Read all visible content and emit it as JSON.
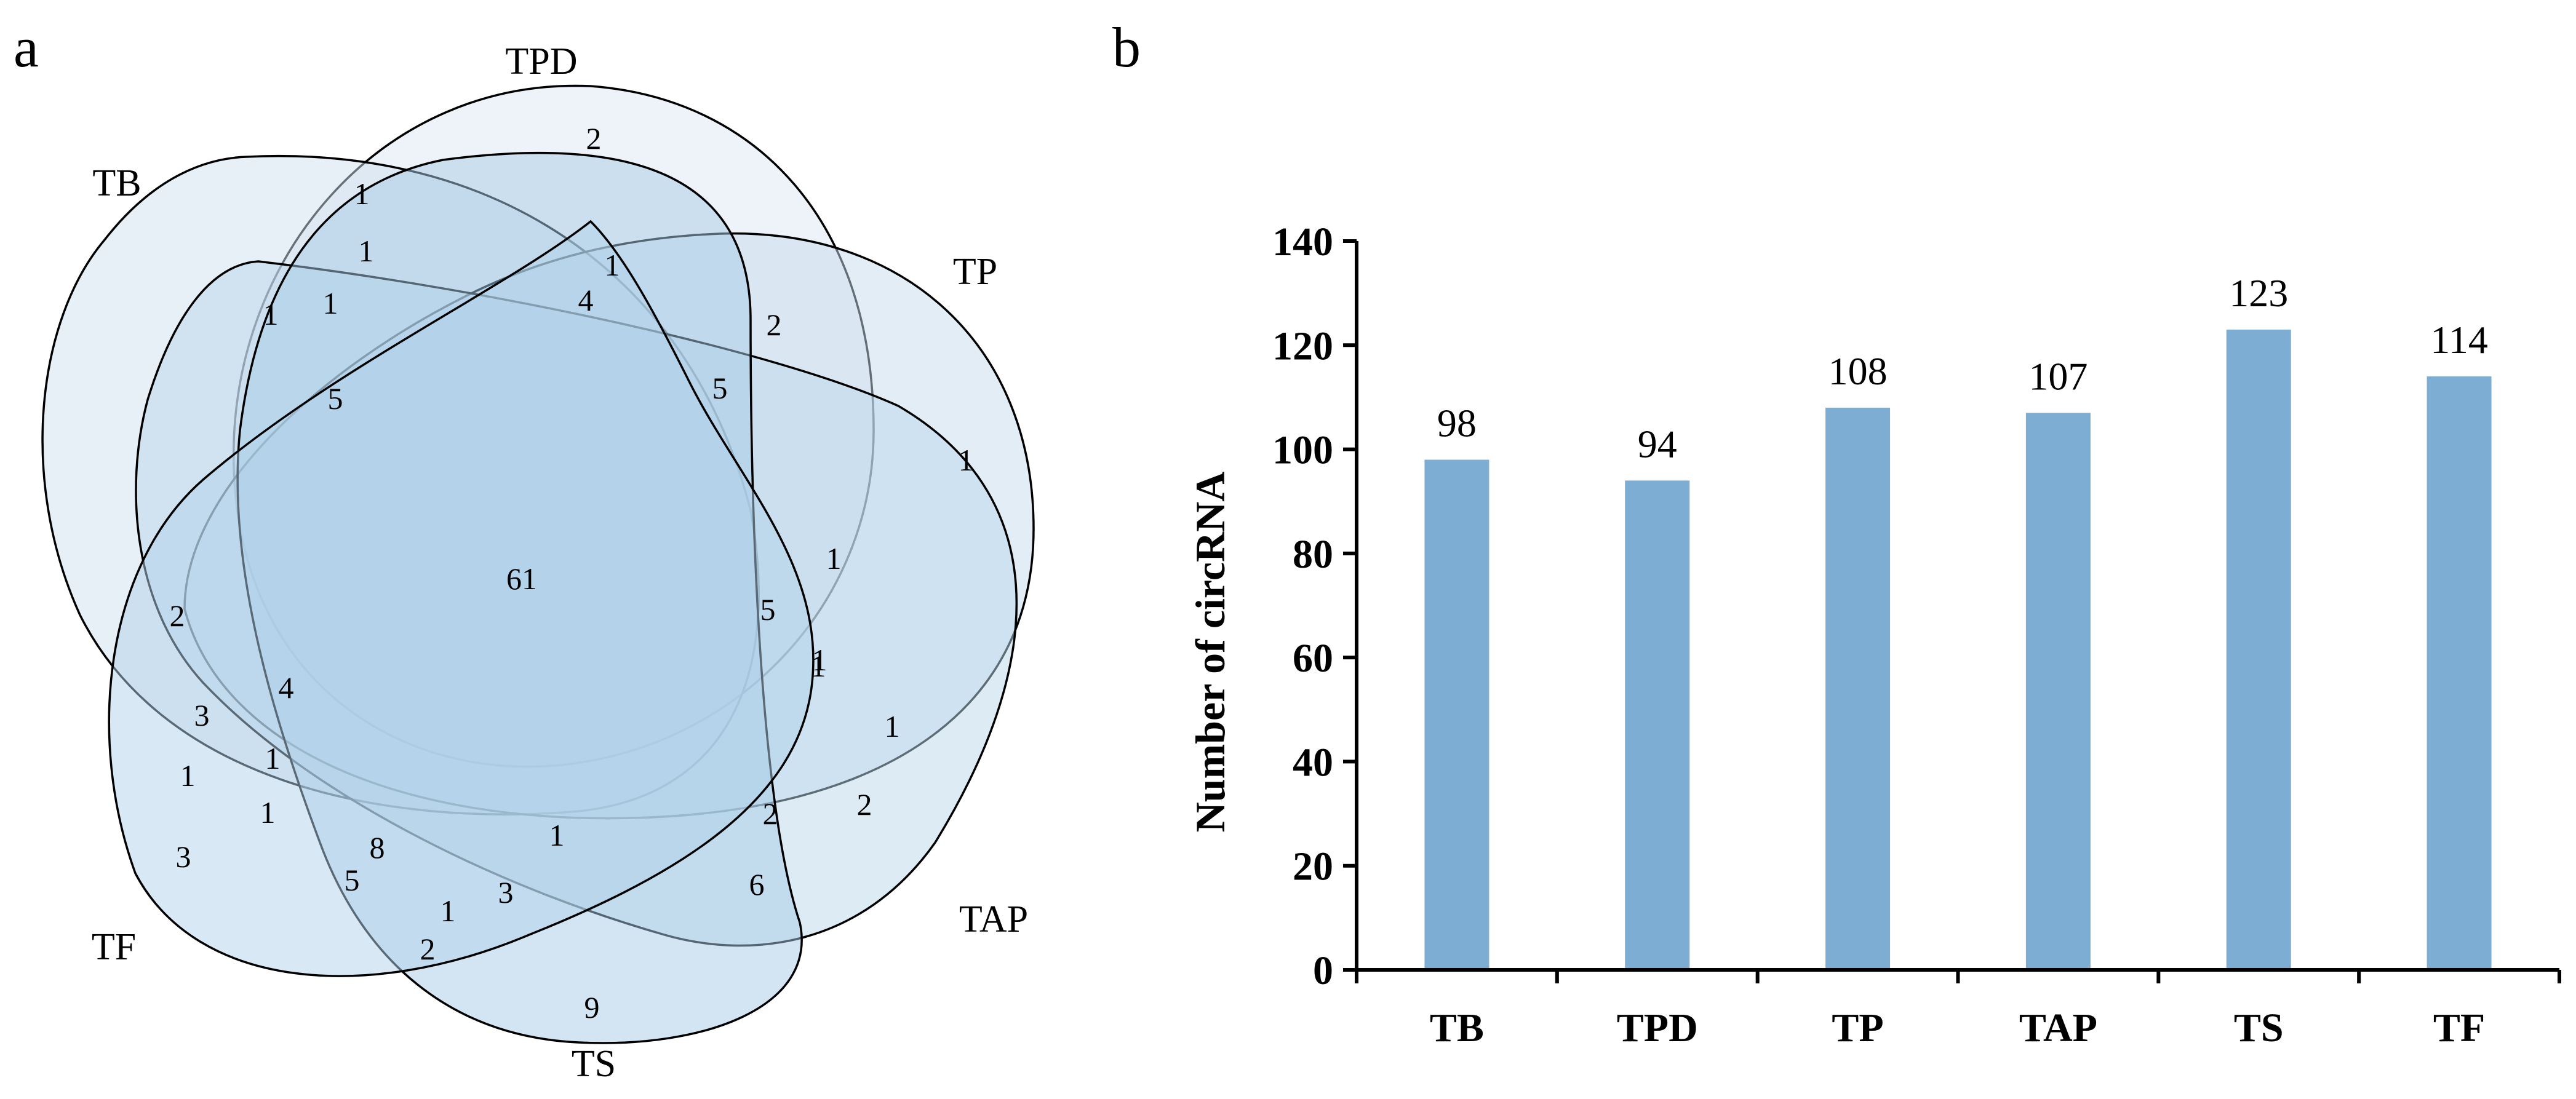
{
  "panels": {
    "a": "a",
    "b": "b"
  },
  "colors": {
    "bar": "#7eadd3",
    "venn_fills": [
      "#dde8f3",
      "#cfe0f0",
      "#c6dcee",
      "#bcd7ec",
      "#a8cbe6",
      "#b2d1ea"
    ]
  },
  "chart_data": [
    {
      "type": "venn",
      "sets": [
        "TB",
        "TPD",
        "TP",
        "TAP",
        "TS",
        "TF"
      ],
      "region_counts": [
        61,
        2,
        1,
        1,
        1,
        1,
        1,
        4,
        2,
        5,
        5,
        1,
        1,
        5,
        1,
        1,
        1,
        6,
        2,
        9,
        3,
        2,
        5,
        8,
        1,
        1,
        3,
        1,
        4,
        2,
        3,
        1,
        1,
        2
      ]
    },
    {
      "type": "bar",
      "title": "",
      "xlabel": "",
      "ylabel": "Number of circRNA",
      "categories": [
        "TB",
        "TPD",
        "TP",
        "TAP",
        "TS",
        "TF"
      ],
      "values": [
        98,
        94,
        108,
        107,
        123,
        114
      ],
      "ylim": [
        0,
        140
      ],
      "yticks": [
        "0",
        "20",
        "40",
        "60",
        "80",
        "100",
        "120",
        "140"
      ],
      "grid": false,
      "legend": "none"
    }
  ]
}
